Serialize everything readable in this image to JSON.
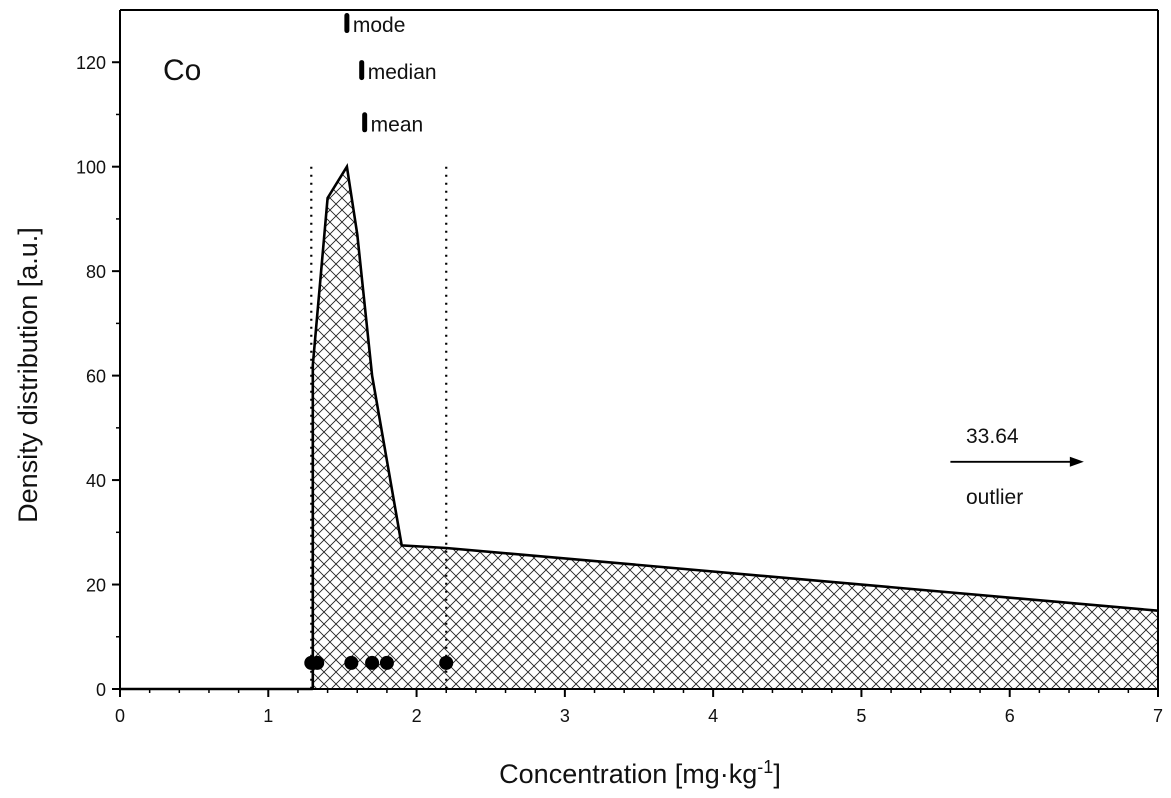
{
  "chart_data": {
    "type": "area",
    "element_label": "Co",
    "xlabel": "Concentration [mg·kg",
    "xlabel_superscript": "-1",
    "xlabel_suffix": "]",
    "ylabel": "Density distribution [a.u.]",
    "xlim": [
      0,
      7
    ],
    "ylim": [
      0,
      130
    ],
    "xticks": [
      0,
      1,
      2,
      3,
      4,
      5,
      6,
      7
    ],
    "yticks": [
      0,
      20,
      40,
      60,
      80,
      100,
      120
    ],
    "x_minor_step": 0.2,
    "y_minor_step": 10,
    "fill_pattern": "crosshatch",
    "density": {
      "x": [
        1.3,
        1.3,
        1.4,
        1.53,
        1.6,
        1.7,
        1.9,
        2.2,
        7.0
      ],
      "y": [
        0,
        62,
        94,
        100,
        87,
        60,
        27.5,
        27,
        15
      ]
    },
    "reference_lines_x": [
      1.29,
      2.2
    ],
    "reference_lines_ytop": 100,
    "samples": {
      "x": [
        1.29,
        1.33,
        1.56,
        1.7,
        1.8,
        2.2
      ],
      "y": [
        5,
        5,
        5,
        5,
        5,
        5
      ]
    },
    "statistics": [
      {
        "label": "mode",
        "x": 1.53,
        "y": 127.5
      },
      {
        "label": "median",
        "x": 1.63,
        "y": 118.5
      },
      {
        "label": "mean",
        "x": 1.65,
        "y": 108.5
      }
    ],
    "outlier": {
      "value": "33.64",
      "label": "outlier",
      "arrow_x": [
        5.6,
        6.5
      ],
      "y": 43.5
    }
  }
}
